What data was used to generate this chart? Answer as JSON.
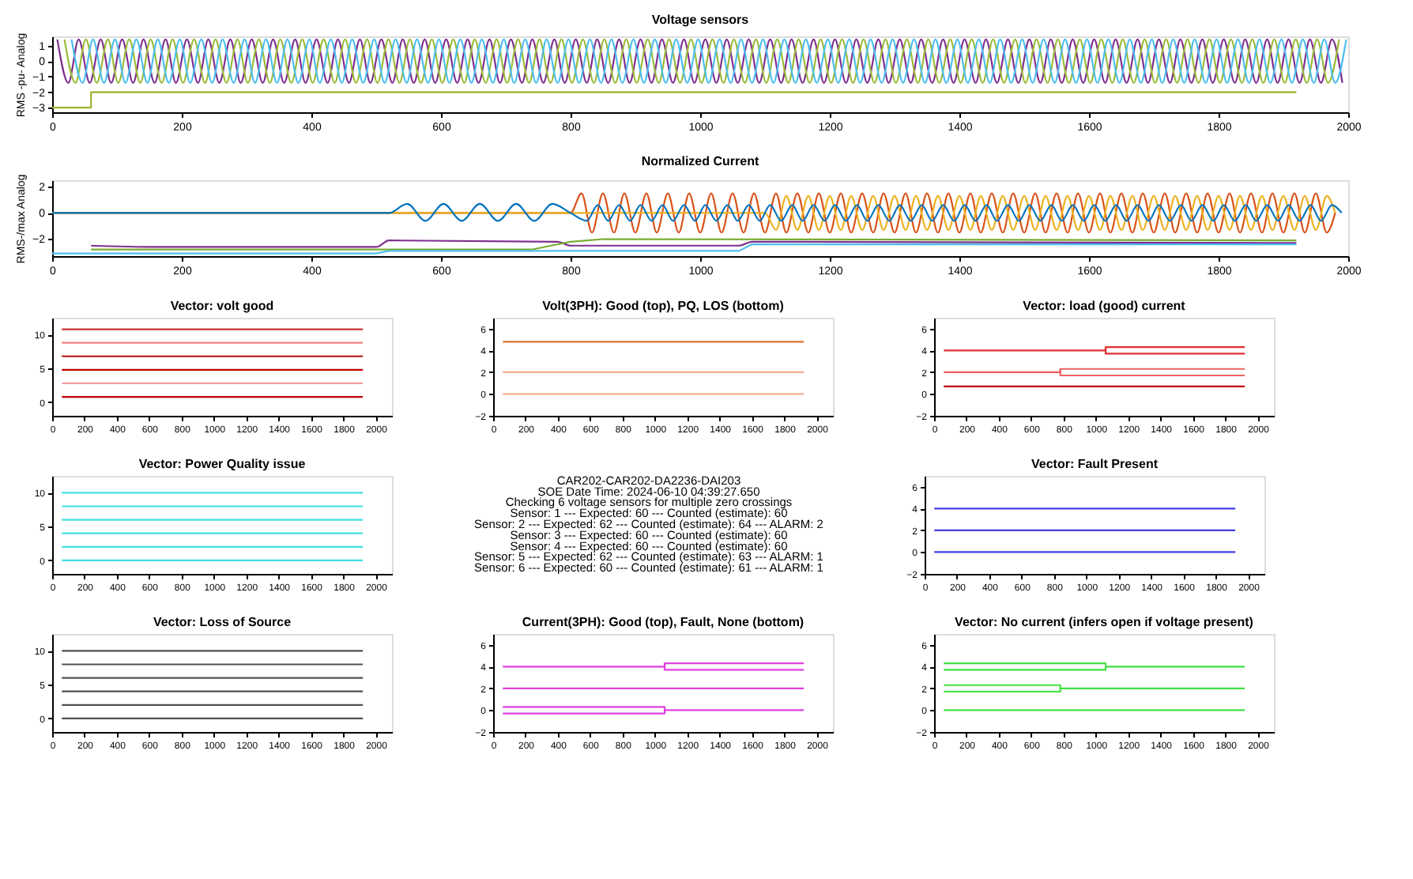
{
  "chart_data": [
    {
      "type": "line",
      "title": "Voltage sensors",
      "ylabel": "RMS -pu- Analog",
      "xlim": [
        0,
        2000
      ],
      "xticks": [
        0,
        200,
        400,
        600,
        800,
        1000,
        1200,
        1400,
        1600,
        1800,
        2000
      ],
      "ylim": [
        -3.3,
        1.6
      ],
      "yticks": [
        -3,
        -2,
        -1,
        0,
        1
      ],
      "series": [
        {
          "color": "#7e2f8e",
          "x": [
            8,
            25,
            41,
            58,
            75,
            91,
            108,
            125,
            141,
            158,
            175,
            191,
            208,
            225,
            241,
            258,
            275,
            291,
            308,
            325,
            341,
            358,
            375,
            391,
            408,
            425,
            441,
            458,
            475,
            491,
            508,
            525,
            541,
            558,
            575,
            591,
            608,
            625,
            641,
            658,
            675,
            691,
            708,
            725,
            741,
            758,
            775,
            791,
            808,
            825,
            841,
            858,
            875,
            891,
            908,
            925,
            941,
            958,
            975,
            991,
            1008,
            1025,
            1041,
            1058,
            1075,
            1091,
            1108,
            1125,
            1141,
            1158,
            1175,
            1191,
            1208,
            1225,
            1241,
            1258,
            1275,
            1291,
            1308,
            1325,
            1341,
            1358,
            1375,
            1391,
            1408,
            1425,
            1441,
            1458,
            1475,
            1491,
            1508,
            1525,
            1541,
            1558,
            1575,
            1591,
            1608,
            1625,
            1641,
            1658,
            1675,
            1691,
            1708,
            1725,
            1741,
            1758,
            1775,
            1791,
            1808,
            1825,
            1841,
            1858,
            1875,
            1891,
            1908,
            1925,
            1941,
            1958,
            1975,
            1991
          ],
          "values": [
            1.4,
            -1.4,
            1.4,
            -1.4,
            1.4,
            -1.4,
            1.4,
            -1.4,
            1.4,
            -1.4,
            1.4,
            -1.4,
            1.4,
            -1.4,
            1.4,
            -1.4,
            1.4,
            -1.4,
            1.4,
            -1.4,
            1.4,
            -1.4,
            1.4,
            -1.4,
            1.4,
            -1.4,
            1.4,
            -1.4,
            1.4,
            -1.4,
            1.4,
            -1.4,
            1.4,
            -1.4,
            1.4,
            -1.4,
            1.4,
            -1.4,
            1.4,
            -1.4,
            1.4,
            -1.4,
            1.4,
            -1.4,
            1.4,
            -1.4,
            1.4,
            -1.4,
            1.4,
            -1.4,
            1.4,
            -1.4,
            1.4,
            -1.4,
            1.4,
            -1.4,
            1.4,
            -1.4,
            1.4,
            -1.4,
            1.4,
            -1.4,
            1.4,
            -1.4,
            1.4,
            -1.4,
            1.4,
            -1.4,
            1.4,
            -1.4,
            1.4,
            -1.4,
            1.4,
            -1.4,
            1.4,
            -1.4,
            1.4,
            -1.4,
            1.4,
            -1.4,
            1.4,
            -1.4,
            1.4,
            -1.4,
            1.4,
            -1.4,
            1.4,
            -1.4,
            1.4,
            -1.4,
            1.4,
            -1.4,
            1.4,
            -1.4,
            1.4,
            -1.4,
            1.4,
            -1.4,
            1.4,
            -1.4,
            1.4,
            -1.4,
            1.4,
            -1.4,
            1.4,
            -1.4,
            1.4,
            -1.4,
            1.4,
            -1.4,
            1.4,
            -1.4,
            1.4,
            -1.4,
            1.4,
            -1.4,
            1.4,
            -1.4,
            1.4,
            -1.4
          ]
        },
        {
          "color": "#9bbb3a",
          "x": [
            19,
            36,
            52,
            69,
            86,
            102,
            119,
            136,
            152,
            169,
            186,
            202,
            219,
            236,
            252,
            269,
            286,
            302,
            319,
            336,
            352,
            369,
            386,
            402,
            419,
            436,
            452,
            469,
            486,
            502,
            519,
            536,
            552,
            569,
            586,
            602,
            619,
            636,
            652,
            669,
            686,
            702,
            719,
            736,
            752,
            769,
            786,
            802,
            819,
            836,
            852,
            869,
            886,
            902,
            919,
            936,
            952,
            969,
            986,
            1002,
            1019,
            1036,
            1052,
            1069,
            1086,
            1102,
            1119,
            1136,
            1152,
            1169,
            1186,
            1202,
            1219,
            1236,
            1252,
            1269,
            1286,
            1302,
            1319,
            1336,
            1352,
            1369,
            1386,
            1402,
            1419,
            1436,
            1452,
            1469,
            1486,
            1502,
            1519,
            1536,
            1552,
            1569,
            1586,
            1602,
            1619,
            1636,
            1652,
            1669,
            1686,
            1702,
            1719,
            1736,
            1752,
            1769,
            1786,
            1802,
            1819,
            1836,
            1852,
            1869,
            1886,
            1902,
            1919,
            1936,
            1952,
            1969,
            1986
          ],
          "values": [
            1.4,
            -1.4,
            1.4,
            -1.4,
            1.4,
            -1.4,
            1.4,
            -1.4,
            1.4,
            -1.4,
            1.4,
            -1.4,
            1.4,
            -1.4,
            1.4,
            -1.4,
            1.4,
            -1.4,
            1.4,
            -1.4,
            1.4,
            -1.4,
            1.4,
            -1.4,
            1.4,
            -1.4,
            1.4,
            -1.4,
            1.4,
            -1.4,
            1.4,
            -1.4,
            1.4,
            -1.4,
            1.4,
            -1.4,
            1.4,
            -1.4,
            1.4,
            -1.4,
            1.4,
            -1.4,
            1.4,
            -1.4,
            1.4,
            -1.4,
            1.4,
            -1.4,
            1.4,
            -1.4,
            1.4,
            -1.4,
            1.4,
            -1.4,
            1.4,
            -1.4,
            1.4,
            -1.4,
            1.4,
            -1.4,
            1.4,
            -1.4,
            1.4,
            -1.4,
            1.4,
            -1.4,
            1.4,
            -1.4,
            1.4,
            -1.4,
            1.4,
            -1.4,
            1.4,
            -1.4,
            1.4,
            -1.4,
            1.4,
            -1.4,
            1.4,
            -1.4,
            1.4,
            -1.4,
            1.4,
            -1.4,
            1.4,
            -1.4,
            1.4,
            -1.4,
            1.4,
            -1.4,
            1.4,
            -1.4,
            1.4,
            -1.4,
            1.4,
            -1.4,
            1.4,
            -1.4,
            1.4,
            -1.4,
            1.4,
            -1.4,
            1.4,
            -1.4,
            1.4,
            -1.4,
            1.4,
            -1.4,
            1.4,
            -1.4,
            1.4,
            -1.4,
            1.4,
            -1.4,
            1.4,
            -1.4,
            1.4,
            -1.4,
            1.4
          ]
        },
        {
          "color": "#4dbeee",
          "x": [
            30,
            47,
            63,
            80,
            97,
            113,
            130,
            147,
            163,
            180,
            197,
            213,
            230,
            247,
            263,
            280,
            297,
            313,
            330,
            347,
            363,
            380,
            397,
            413,
            430,
            447,
            463,
            480,
            497,
            513,
            530,
            547,
            563,
            580,
            597,
            613,
            630,
            647,
            663,
            680,
            697,
            713,
            730,
            747,
            763,
            780,
            797,
            813,
            830,
            847,
            863,
            880,
            897,
            913,
            930,
            947,
            963,
            980,
            997,
            1013,
            1030,
            1047,
            1063,
            1080,
            1097,
            1113,
            1130,
            1147,
            1163,
            1180,
            1197,
            1213,
            1230,
            1247,
            1263,
            1280,
            1297,
            1313,
            1330,
            1347,
            1363,
            1380,
            1397,
            1413,
            1430,
            1447,
            1463,
            1480,
            1497,
            1513,
            1530,
            1547,
            1563,
            1580,
            1597,
            1613,
            1630,
            1647,
            1663,
            1680,
            1697,
            1713,
            1730,
            1747,
            1763,
            1780,
            1797,
            1813,
            1830,
            1847,
            1863,
            1880,
            1897,
            1913,
            1930,
            1947,
            1963,
            1980,
            1997
          ],
          "values": [
            1.4,
            -1.4,
            1.4,
            -1.4,
            1.4,
            -1.4,
            1.4,
            -1.4,
            1.4,
            -1.4,
            1.4,
            -1.4,
            1.4,
            -1.4,
            1.4,
            -1.4,
            1.4,
            -1.4,
            1.4,
            -1.4,
            1.4,
            -1.4,
            1.4,
            -1.4,
            1.4,
            -1.4,
            1.4,
            -1.4,
            1.4,
            -1.4,
            1.4,
            -1.4,
            1.4,
            -1.4,
            1.4,
            -1.4,
            1.4,
            -1.4,
            1.4,
            -1.4,
            1.4,
            -1.4,
            1.4,
            -1.4,
            1.4,
            -1.4,
            1.4,
            -1.4,
            1.4,
            -1.4,
            1.4,
            -1.4,
            1.4,
            -1.4,
            1.4,
            -1.4,
            1.4,
            -1.4,
            1.4,
            -1.4,
            1.4,
            -1.4,
            1.4,
            -1.4,
            1.4,
            -1.4,
            1.4,
            -1.4,
            1.4,
            -1.4,
            1.4,
            -1.4,
            1.4,
            -1.4,
            1.4,
            -1.4,
            1.4,
            -1.4,
            1.4,
            -1.4,
            1.4,
            -1.4,
            1.4,
            -1.4,
            1.4,
            -1.4,
            1.4,
            -1.4,
            1.4,
            -1.4,
            1.4,
            -1.4,
            1.4,
            -1.4,
            1.4,
            -1.4,
            1.4,
            -1.4,
            1.4,
            -1.4,
            1.4,
            -1.4,
            1.4,
            -1.4,
            1.4,
            -1.4,
            1.4,
            -1.4,
            1.4,
            -1.4,
            1.4,
            -1.4,
            1.4,
            -1.4,
            1.4,
            -1.4,
            1.4,
            -1.4,
            1.4
          ]
        },
        {
          "color": "#a0b030",
          "x": [
            0,
            60,
            60,
            1920
          ],
          "values": [
            -3,
            -3,
            -2,
            -2
          ]
        }
      ]
    },
    {
      "type": "line",
      "title": "Normalized Current",
      "ylabel": "RMS-/max Analog",
      "xlim": [
        0,
        2000
      ],
      "xticks": [
        0,
        200,
        400,
        600,
        800,
        1000,
        1200,
        1400,
        1600,
        1800,
        2000
      ],
      "ylim": [
        -3.3,
        2.5
      ],
      "yticks": [
        -2,
        0,
        2
      ],
      "series": [
        {
          "color": "#d95319",
          "x": [
            0,
            800,
            817,
            833,
            850,
            867,
            883,
            900,
            917,
            933,
            950,
            967,
            983,
            1000,
            1017,
            1033,
            1050,
            1067,
            1083,
            1100,
            1117,
            1133,
            1150,
            1167,
            1183,
            1200,
            1217,
            1233,
            1250,
            1267,
            1283,
            1300,
            1317,
            1333,
            1350,
            1367,
            1383,
            1400,
            1417,
            1433,
            1450,
            1467,
            1483,
            1500,
            1517,
            1533,
            1550,
            1567,
            1583,
            1600,
            1617,
            1633,
            1650,
            1667,
            1683,
            1700,
            1717,
            1733,
            1750,
            1767,
            1783,
            1800,
            1817,
            1833,
            1850,
            1867,
            1883,
            1900,
            1917,
            1933,
            1950,
            1967,
            1980
          ],
          "values": [
            0,
            0,
            1.5,
            -1.5,
            1.5,
            -1.5,
            1.5,
            -1.5,
            1.5,
            -1.5,
            1.5,
            -1.5,
            1.5,
            -1.5,
            1.5,
            -1.5,
            1.5,
            -1.5,
            1.5,
            -1.5,
            1.5,
            -1.5,
            1.5,
            -1.5,
            1.5,
            -1.5,
            1.5,
            -1.5,
            1.5,
            -1.5,
            1.5,
            -1.5,
            1.5,
            -1.5,
            1.5,
            -1.5,
            1.5,
            -1.5,
            1.5,
            -1.5,
            1.5,
            -1.5,
            1.5,
            -1.5,
            1.5,
            -1.5,
            1.5,
            -1.5,
            1.5,
            -1.5,
            1.5,
            -1.5,
            1.5,
            -1.5,
            1.5,
            -1.5,
            1.5,
            -1.5,
            1.5,
            -1.5,
            1.5,
            -1.5,
            1.5,
            -1.5,
            1.5,
            -1.5,
            1.5,
            -1.5,
            1.5,
            -1.5,
            1.5,
            -1.5,
            0
          ]
        },
        {
          "color": "#edb120",
          "x": [
            0,
            1100,
            1117,
            1133,
            1150,
            1167,
            1183,
            1200,
            1217,
            1233,
            1250,
            1267,
            1283,
            1300,
            1317,
            1333,
            1350,
            1367,
            1383,
            1400,
            1417,
            1433,
            1450,
            1467,
            1483,
            1500,
            1517,
            1533,
            1550,
            1567,
            1583,
            1600,
            1617,
            1633,
            1650,
            1667,
            1683,
            1700,
            1717,
            1733,
            1750,
            1767,
            1783,
            1800,
            1817,
            1833,
            1850,
            1867,
            1883,
            1900,
            1917,
            1933,
            1950,
            1967,
            1980
          ],
          "values": [
            0,
            0,
            -1.3,
            1.3,
            -1.3,
            1.3,
            -1.3,
            1.3,
            -1.3,
            1.3,
            -1.3,
            1.3,
            -1.3,
            1.3,
            -1.3,
            1.3,
            -1.3,
            1.3,
            -1.3,
            1.3,
            -1.3,
            1.3,
            -1.3,
            1.3,
            -1.3,
            1.3,
            -1.3,
            1.3,
            -1.3,
            1.3,
            -1.3,
            1.3,
            -1.3,
            1.3,
            -1.3,
            1.3,
            -1.3,
            1.3,
            -1.3,
            1.3,
            -1.3,
            1.3,
            -1.3,
            1.3,
            -1.3,
            1.3,
            -1.3,
            1.3,
            -1.3,
            1.3,
            -1.3,
            1.3,
            -1.3,
            1.3,
            0
          ]
        },
        {
          "color": "#0072bd",
          "x": [
            0,
            520,
            548,
            576,
            604,
            632,
            660,
            688,
            716,
            744,
            772,
            800,
            825,
            842,
            858,
            875,
            892,
            908,
            925,
            942,
            958,
            975,
            992,
            1008,
            1025,
            1042,
            1058,
            1075,
            1092,
            1108,
            1125,
            1142,
            1158,
            1175,
            1192,
            1208,
            1225,
            1242,
            1258,
            1275,
            1292,
            1308,
            1325,
            1342,
            1358,
            1375,
            1392,
            1408,
            1425,
            1442,
            1458,
            1475,
            1492,
            1508,
            1525,
            1542,
            1558,
            1575,
            1592,
            1608,
            1625,
            1642,
            1658,
            1675,
            1692,
            1708,
            1725,
            1742,
            1758,
            1775,
            1792,
            1808,
            1825,
            1842,
            1858,
            1875,
            1892,
            1908,
            1925,
            1942,
            1958,
            1975,
            1990
          ],
          "values": [
            0,
            0,
            0.7,
            -0.6,
            0.7,
            -0.6,
            0.7,
            -0.6,
            0.7,
            -0.6,
            0.7,
            0,
            -0.6,
            0.6,
            -0.6,
            0.6,
            -0.6,
            0.6,
            -0.6,
            0.6,
            -0.6,
            0.6,
            -0.6,
            0.6,
            -0.6,
            0.6,
            -0.6,
            0.6,
            -0.6,
            0.6,
            -0.6,
            0.6,
            -0.6,
            0.6,
            -0.6,
            0.6,
            -0.6,
            0.6,
            -0.6,
            0.6,
            -0.6,
            0.6,
            -0.6,
            0.6,
            -0.6,
            0.6,
            -0.6,
            0.6,
            -0.6,
            0.6,
            -0.6,
            0.6,
            -0.6,
            0.6,
            -0.6,
            0.6,
            -0.6,
            0.6,
            -0.6,
            0.6,
            -0.6,
            0.6,
            -0.6,
            0.6,
            -0.6,
            0.6,
            -0.6,
            0.6,
            -0.6,
            0.6,
            -0.6,
            0.6,
            -0.6,
            0.6,
            -0.6,
            0.6,
            -0.6,
            0.6,
            -0.6,
            0.6,
            -0.6,
            0.6,
            0
          ]
        },
        {
          "color": "#7e2f8e",
          "x": [
            60,
            160,
            500,
            520,
            780,
            800,
            1060,
            1080,
            1920
          ],
          "values": [
            -2.5,
            -2.6,
            -2.6,
            -2.1,
            -2.2,
            -2.5,
            -2.5,
            -2.2,
            -2.3
          ]
        },
        {
          "color": "#77ac30",
          "x": [
            60,
            740,
            800,
            850,
            1920
          ],
          "values": [
            -2.8,
            -2.8,
            -2.2,
            -2.0,
            -2.1
          ]
        },
        {
          "color": "#4dbeee",
          "x": [
            0,
            500,
            520,
            1060,
            1080,
            1920
          ],
          "values": [
            -3.1,
            -3.1,
            -2.9,
            -2.9,
            -2.4,
            -2.4
          ]
        }
      ]
    },
    {
      "type": "line",
      "title": "Vector: volt good",
      "xlim": [
        0,
        2100
      ],
      "xticks": [
        0,
        200,
        400,
        600,
        800,
        1000,
        1200,
        1400,
        1600,
        1800,
        2000
      ],
      "ylim": [
        -2,
        12.5
      ],
      "yticks": [
        0,
        5,
        10
      ],
      "series": [
        {
          "color": "#c00000",
          "x": [
            60,
            1920
          ],
          "values": [
            0.8,
            0.8
          ]
        },
        {
          "color": "#f4a0a0",
          "x": [
            60,
            1920
          ],
          "values": [
            2.8,
            2.8
          ]
        },
        {
          "color": "#c00000",
          "x": [
            60,
            1920
          ],
          "values": [
            4.8,
            4.8
          ]
        },
        {
          "color": "#b01010",
          "x": [
            60,
            1920
          ],
          "values": [
            6.8,
            6.8
          ]
        },
        {
          "color": "#f08080",
          "x": [
            60,
            1920
          ],
          "values": [
            8.8,
            8.8
          ]
        },
        {
          "color": "#d03030",
          "x": [
            60,
            1920
          ],
          "values": [
            10.8,
            10.8
          ]
        }
      ]
    },
    {
      "type": "line",
      "title": "Volt(3PH): Good (top), PQ, LOS (bottom)",
      "xlim": [
        0,
        2100
      ],
      "xticks": [
        0,
        200,
        400,
        600,
        800,
        1000,
        1200,
        1400,
        1600,
        1800,
        2000
      ],
      "ylim": [
        -2,
        7
      ],
      "yticks": [
        -2,
        0,
        2,
        4,
        6
      ],
      "series": [
        {
          "color": "#e07030",
          "x": [
            60,
            1920
          ],
          "values": [
            4.8,
            4.8
          ]
        },
        {
          "color": "#f0b090",
          "x": [
            60,
            1920
          ],
          "values": [
            2,
            2
          ]
        },
        {
          "color": "#f0b090",
          "x": [
            60,
            1920
          ],
          "values": [
            0,
            0
          ]
        }
      ]
    },
    {
      "type": "line",
      "title": "Vector: load (good) current",
      "xlim": [
        0,
        2100
      ],
      "xticks": [
        0,
        200,
        400,
        600,
        800,
        1000,
        1200,
        1400,
        1600,
        1800,
        2000
      ],
      "ylim": [
        -2,
        7
      ],
      "yticks": [
        -2,
        0,
        2,
        4,
        6
      ],
      "series": [
        {
          "color": "#e03030",
          "x": [
            60,
            1060,
            1060,
            1920
          ],
          "values": [
            4,
            4,
            4.3,
            4.3
          ]
        },
        {
          "color": "#e03030",
          "x": [
            1060,
            1060,
            1920
          ],
          "values": [
            4.3,
            3.7,
            3.7
          ]
        },
        {
          "color": "#f06060",
          "x": [
            60,
            780,
            780,
            1920
          ],
          "values": [
            2,
            2,
            2.3,
            2.3
          ]
        },
        {
          "color": "#f06060",
          "x": [
            780,
            780,
            1920
          ],
          "values": [
            2.3,
            1.7,
            1.7
          ]
        },
        {
          "color": "#c00000",
          "x": [
            60,
            1920
          ],
          "values": [
            0.7,
            0.7
          ]
        }
      ]
    },
    {
      "type": "line",
      "title": "Vector: Power Quality issue",
      "xlim": [
        0,
        2100
      ],
      "xticks": [
        0,
        200,
        400,
        600,
        800,
        1000,
        1200,
        1400,
        1600,
        1800,
        2000
      ],
      "ylim": [
        -2,
        12.5
      ],
      "yticks": [
        0,
        5,
        10
      ],
      "series": [
        {
          "color": "#40e0e0",
          "x": [
            60,
            1920
          ],
          "values": [
            0,
            0
          ]
        },
        {
          "color": "#40e0e0",
          "x": [
            60,
            1920
          ],
          "values": [
            2,
            2
          ]
        },
        {
          "color": "#40e0e0",
          "x": [
            60,
            1920
          ],
          "values": [
            4,
            4
          ]
        },
        {
          "color": "#40e0e0",
          "x": [
            60,
            1920
          ],
          "values": [
            6,
            6
          ]
        },
        {
          "color": "#40e0e0",
          "x": [
            60,
            1920
          ],
          "values": [
            8,
            8
          ]
        },
        {
          "color": "#40e0e0",
          "x": [
            60,
            1920
          ],
          "values": [
            10,
            10
          ]
        }
      ]
    },
    {
      "type": "other",
      "annotations": [
        "CAR202-CAR202-DA2236-DAI203",
        "SOE Date Time: 2024-06-10 04:39:27.650",
        "Checking 6 voltage sensors for multiple zero crossings",
        "Sensor: 1 --- Expected: 60 --- Counted (estimate): 60",
        "Sensor: 2 --- Expected: 62 --- Counted (estimate): 64 --- ALARM: 2",
        "Sensor: 3 --- Expected: 60 --- Counted (estimate): 60",
        "Sensor: 4 --- Expected: 60 --- Counted (estimate): 60",
        "Sensor: 5 --- Expected: 62 --- Counted (estimate): 63 --- ALARM: 1",
        "Sensor: 6 --- Expected: 60 --- Counted (estimate): 61 --- ALARM: 1"
      ]
    },
    {
      "type": "line",
      "title": "Vector: Fault Present",
      "xlim": [
        0,
        2100
      ],
      "xticks": [
        0,
        200,
        400,
        600,
        800,
        1000,
        1200,
        1400,
        1600,
        1800,
        2000
      ],
      "ylim": [
        -2,
        7
      ],
      "yticks": [
        -2,
        0,
        2,
        4,
        6
      ],
      "series": [
        {
          "color": "#4040e0",
          "x": [
            60,
            1920
          ],
          "values": [
            0,
            0
          ]
        },
        {
          "color": "#4040e0",
          "x": [
            60,
            1920
          ],
          "values": [
            2,
            2
          ]
        },
        {
          "color": "#4040e0",
          "x": [
            60,
            1920
          ],
          "values": [
            4,
            4
          ]
        }
      ]
    },
    {
      "type": "line",
      "title": "Vector: Loss of Source",
      "xlim": [
        0,
        2100
      ],
      "xticks": [
        0,
        200,
        400,
        600,
        800,
        1000,
        1200,
        1400,
        1600,
        1800,
        2000
      ],
      "ylim": [
        -2,
        12.5
      ],
      "yticks": [
        0,
        5,
        10
      ],
      "series": [
        {
          "color": "#505050",
          "x": [
            60,
            1920
          ],
          "values": [
            0,
            0
          ]
        },
        {
          "color": "#505050",
          "x": [
            60,
            1920
          ],
          "values": [
            2,
            2
          ]
        },
        {
          "color": "#505050",
          "x": [
            60,
            1920
          ],
          "values": [
            4,
            4
          ]
        },
        {
          "color": "#505050",
          "x": [
            60,
            1920
          ],
          "values": [
            6,
            6
          ]
        },
        {
          "color": "#505050",
          "x": [
            60,
            1920
          ],
          "values": [
            8,
            8
          ]
        },
        {
          "color": "#505050",
          "x": [
            60,
            1920
          ],
          "values": [
            10,
            10
          ]
        }
      ]
    },
    {
      "type": "line",
      "title": "Current(3PH): Good (top), Fault, None (bottom)",
      "xlim": [
        0,
        2100
      ],
      "xticks": [
        0,
        200,
        400,
        600,
        800,
        1000,
        1200,
        1400,
        1600,
        1800,
        2000
      ],
      "ylim": [
        -2,
        7
      ],
      "yticks": [
        -2,
        0,
        2,
        4,
        6
      ],
      "series": [
        {
          "color": "#e040e0",
          "x": [
            60,
            1060,
            1060,
            1920
          ],
          "values": [
            4,
            4,
            4.3,
            4.3
          ]
        },
        {
          "color": "#e040e0",
          "x": [
            1060,
            1060,
            1920
          ],
          "values": [
            4.3,
            3.7,
            3.7
          ]
        },
        {
          "color": "#e040e0",
          "x": [
            60,
            1920
          ],
          "values": [
            2,
            2
          ]
        },
        {
          "color": "#e040e0",
          "x": [
            60,
            1060,
            1060
          ],
          "values": [
            0.3,
            0.3,
            -0.3
          ]
        },
        {
          "color": "#e040e0",
          "x": [
            60,
            1060,
            1060,
            1920
          ],
          "values": [
            -0.3,
            -0.3,
            0,
            0
          ]
        }
      ]
    },
    {
      "type": "line",
      "title": "Vector: No current (infers open if voltage present)",
      "xlim": [
        0,
        2100
      ],
      "xticks": [
        0,
        200,
        400,
        600,
        800,
        1000,
        1200,
        1400,
        1600,
        1800,
        2000
      ],
      "ylim": [
        -2,
        7
      ],
      "yticks": [
        -2,
        0,
        2,
        4,
        6
      ],
      "series": [
        {
          "color": "#40e040",
          "x": [
            60,
            1060,
            1060,
            1920
          ],
          "values": [
            4.3,
            4.3,
            4,
            4
          ]
        },
        {
          "color": "#40e040",
          "x": [
            60,
            1060,
            1060
          ],
          "values": [
            3.7,
            3.7,
            4
          ]
        },
        {
          "color": "#40e040",
          "x": [
            60,
            780,
            780,
            1920
          ],
          "values": [
            2.3,
            2.3,
            2,
            2
          ]
        },
        {
          "color": "#40e040",
          "x": [
            60,
            780,
            780
          ],
          "values": [
            1.7,
            1.7,
            2
          ]
        },
        {
          "color": "#40e040",
          "x": [
            60,
            1920
          ],
          "values": [
            0,
            0
          ]
        }
      ]
    }
  ]
}
